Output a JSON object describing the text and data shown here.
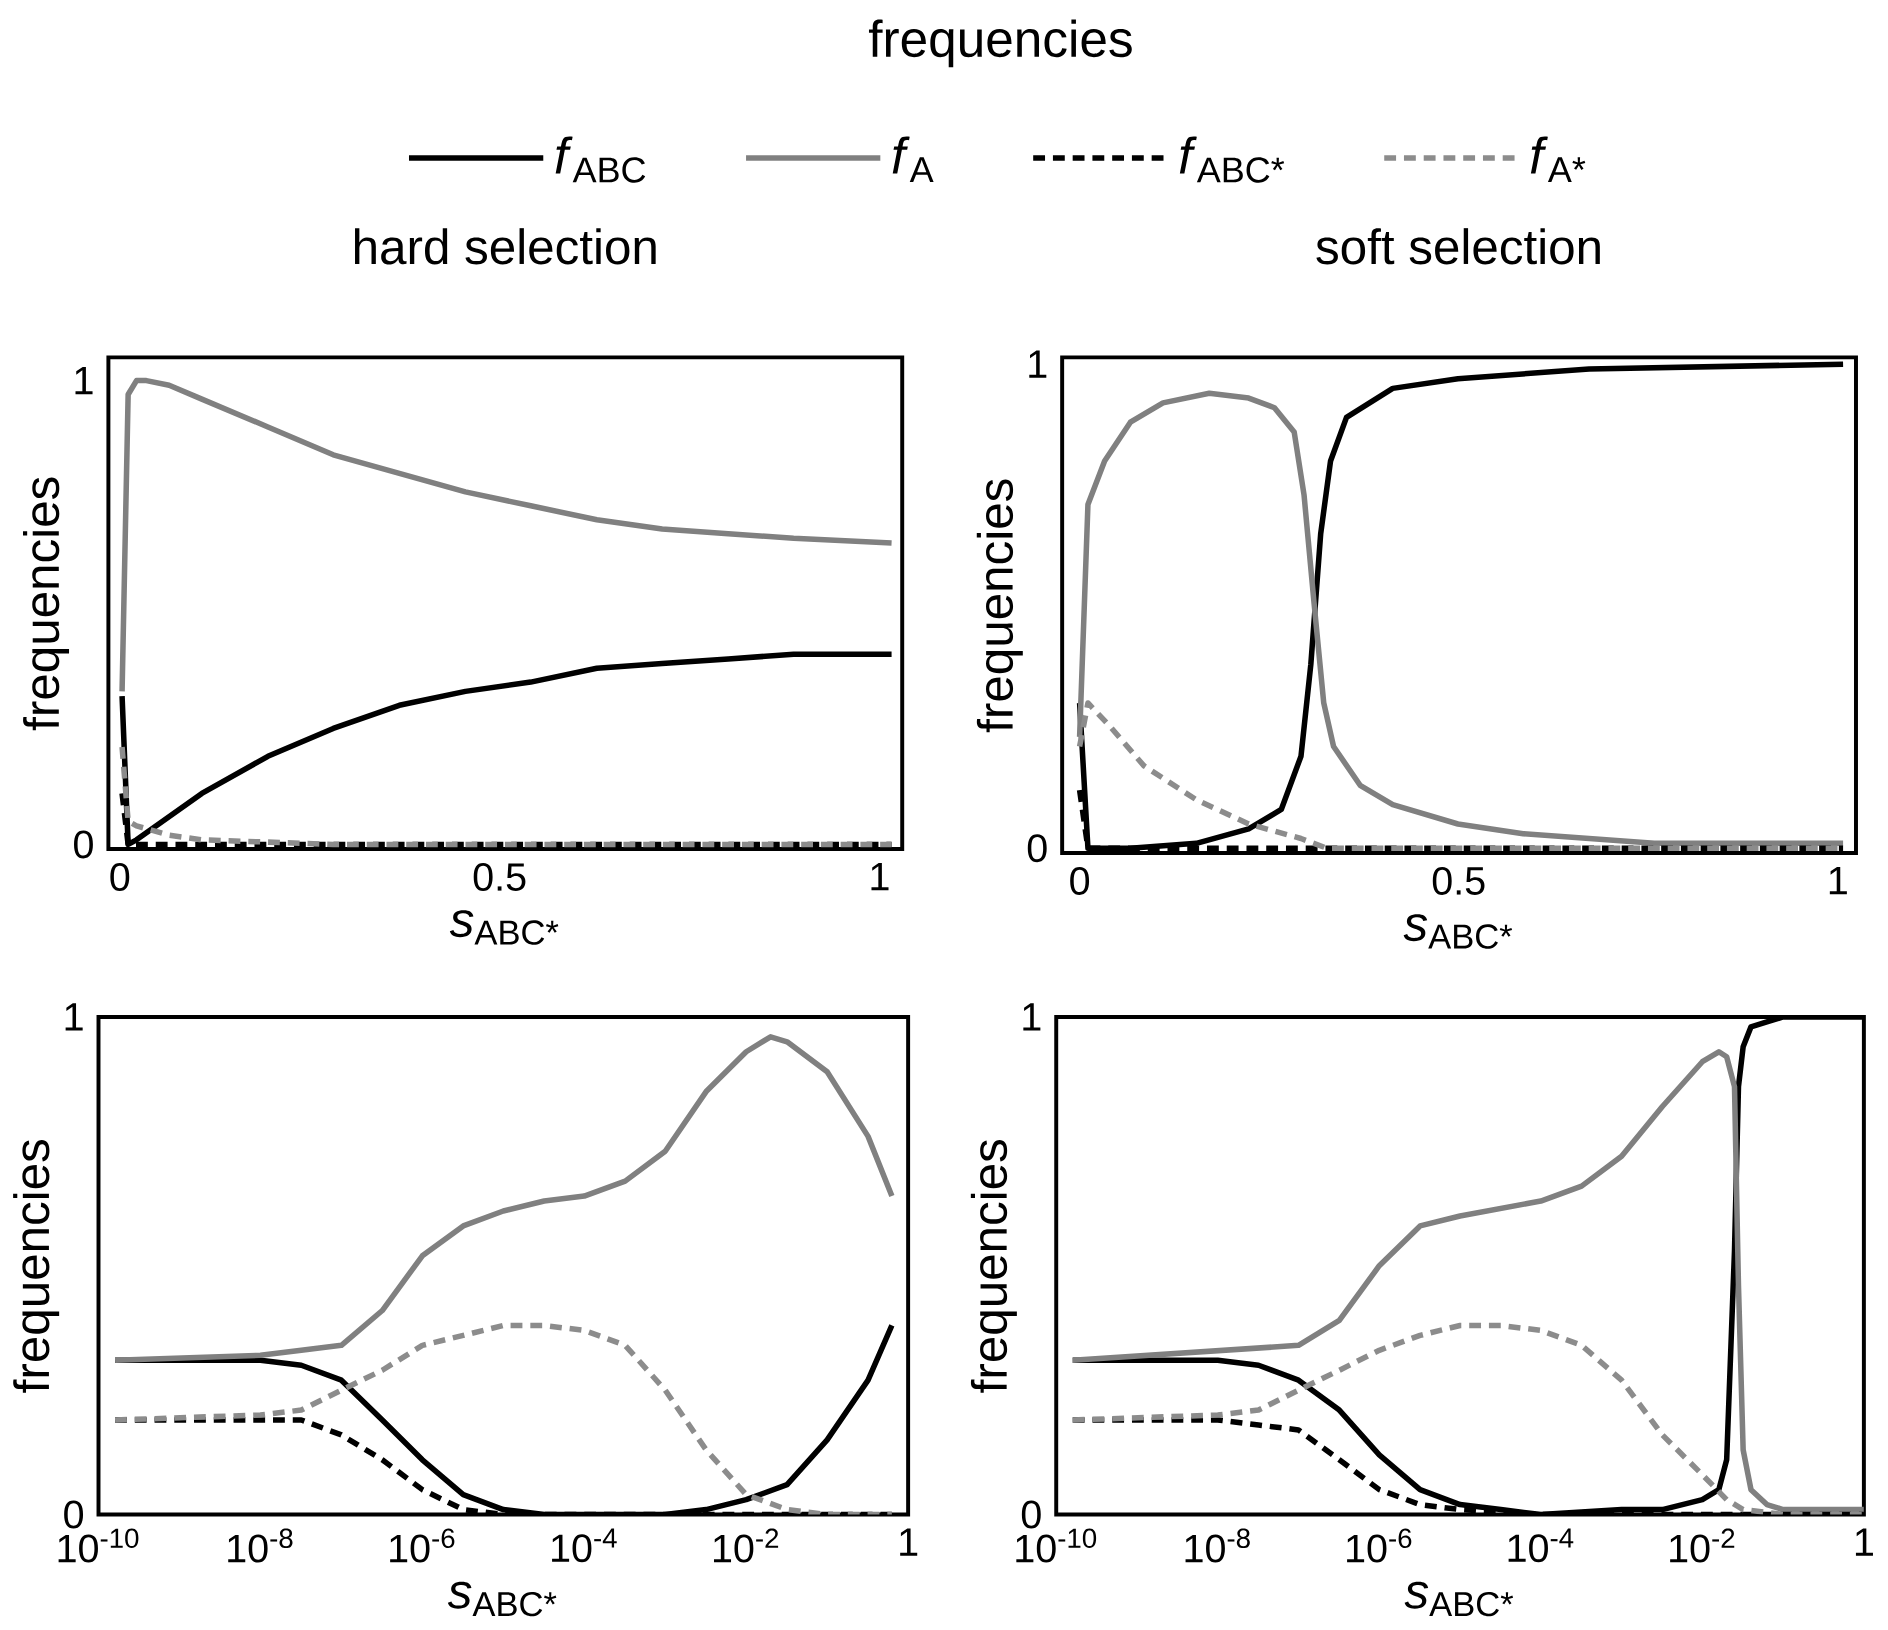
{
  "chart_data": [
    {
      "type": "line",
      "title": "hard selection",
      "xlabel": "*s*$_{ABC*}$",
      "ylabel": "frequencies",
      "legend": "top",
      "legend_title": "frequencies",
      "xlim": [
        -0.015,
        1.03
      ],
      "ylim": [
        -0.01,
        1.05
      ],
      "xticks": [
        0,
        0.5,
        1
      ],
      "yticks": [
        0,
        1
      ],
      "series": [
        {
          "name": "*f*$_{ABC}$",
          "color": "#000000",
          "line_style": "solid",
          "x": [
            0.003,
            0.011,
            0.022,
            0.108,
            0.195,
            0.281,
            0.368,
            0.455,
            0.541,
            0.628,
            0.714,
            0.801,
            0.887,
            1.016
          ],
          "values": [
            0.32,
            0.0,
            0.01,
            0.11,
            0.19,
            0.25,
            0.3,
            0.33,
            0.35,
            0.38,
            0.39,
            0.4,
            0.41,
            0.41
          ]
        },
        {
          "name": "*f*$_{A}$",
          "color": "#808080",
          "line_style": "solid",
          "x": [
            0.003,
            0.011,
            0.022,
            0.035,
            0.065,
            0.108,
            0.195,
            0.281,
            0.368,
            0.455,
            0.541,
            0.628,
            0.714,
            0.801,
            0.887,
            1.016
          ],
          "values": [
            0.33,
            0.97,
            1.0,
            1.0,
            0.99,
            0.96,
            0.9,
            0.84,
            0.8,
            0.76,
            0.73,
            0.7,
            0.68,
            0.67,
            0.66,
            0.65
          ]
        },
        {
          "name": "*f*$_{ABC*}$",
          "color": "#000000",
          "line_style": "dashed",
          "x": [
            0.003,
            0.011,
            1.016
          ],
          "values": [
            0.11,
            0.0,
            0.0
          ]
        },
        {
          "name": "*f*$_{A*}$",
          "color": "#8c8c8c",
          "line_style": "dashed",
          "x": [
            0.003,
            0.011,
            0.022,
            0.065,
            0.108,
            0.281,
            1.016
          ],
          "values": [
            0.21,
            0.05,
            0.04,
            0.02,
            0.01,
            0.0,
            0.0
          ]
        }
      ]
    },
    {
      "type": "line",
      "title": "soft selection",
      "xlabel": "*s*$_{ABC*}$",
      "ylabel": "frequencies",
      "xlim": [
        -0.023,
        1.024
      ],
      "ylim": [
        -0.01,
        1.014
      ],
      "xticks": [
        0,
        0.5,
        1
      ],
      "yticks": [
        0,
        1
      ],
      "series": [
        {
          "color": "#000000",
          "line_style": "solid",
          "x": [
            0.0,
            0.011,
            0.067,
            0.154,
            0.223,
            0.266,
            0.292,
            0.305,
            0.318,
            0.331,
            0.352,
            0.413,
            0.499,
            0.672,
            1.007
          ],
          "values": [
            0.3,
            0.0,
            0.0,
            0.01,
            0.04,
            0.08,
            0.19,
            0.38,
            0.65,
            0.8,
            0.89,
            0.95,
            0.97,
            0.99,
            1.0
          ]
        },
        {
          "color": "#808080",
          "line_style": "solid",
          "x": [
            0.0,
            0.011,
            0.033,
            0.067,
            0.11,
            0.171,
            0.223,
            0.257,
            0.283,
            0.296,
            0.309,
            0.322,
            0.335,
            0.37,
            0.413,
            0.499,
            0.585,
            0.758,
            1.007
          ],
          "values": [
            0.23,
            0.71,
            0.8,
            0.88,
            0.92,
            0.94,
            0.93,
            0.91,
            0.86,
            0.73,
            0.51,
            0.3,
            0.21,
            0.13,
            0.09,
            0.05,
            0.03,
            0.01,
            0.01
          ]
        },
        {
          "color": "#000000",
          "line_style": "dashed",
          "x": [
            0.0,
            0.011,
            1.007
          ],
          "values": [
            0.12,
            0.0,
            0.0
          ]
        },
        {
          "color": "#8c8c8c",
          "line_style": "dashed",
          "x": [
            0.0,
            0.011,
            0.041,
            0.085,
            0.154,
            0.223,
            0.292,
            0.326,
            1.007
          ],
          "values": [
            0.21,
            0.3,
            0.25,
            0.17,
            0.1,
            0.05,
            0.02,
            0.0,
            0.0
          ]
        }
      ]
    },
    {
      "type": "line",
      "xlabel": "*s*$_{ABC*}$",
      "ylabel": "frequencies",
      "log": "x",
      "xlim": [
        1e-10,
        1
      ],
      "ylim": [
        0,
        1
      ],
      "xticks": [
        {
          "value": 1e-10,
          "label": "10$^{-10}$"
        },
        {
          "value": 1e-08,
          "label": "10$^{-8}$"
        },
        {
          "value": 1e-06,
          "label": "10$^{-6}$"
        },
        {
          "value": 0.0001,
          "label": "10$^{-4}$"
        },
        {
          "value": 0.01,
          "label": "10$^{-2}$"
        },
        1
      ],
      "yticks": [
        0,
        1
      ],
      "series": [
        {
          "color": "#000000",
          "line_style": "solid",
          "x": [
            1.6e-10,
            1e-08,
            3.2e-08,
            1e-07,
            3.2e-07,
            1e-06,
            3.2e-06,
            1e-05,
            3.2e-05,
            0.0001,
            0.001,
            0.0032,
            0.01,
            0.032,
            0.1,
            0.32,
            0.63
          ],
          "values": [
            0.31,
            0.31,
            0.3,
            0.27,
            0.19,
            0.11,
            0.04,
            0.01,
            0.0,
            0.0,
            0.0,
            0.01,
            0.03,
            0.06,
            0.15,
            0.27,
            0.38
          ]
        },
        {
          "color": "#808080",
          "line_style": "solid",
          "x": [
            1.6e-10,
            1e-08,
            3.2e-08,
            1e-07,
            3.2e-07,
            1e-06,
            3.2e-06,
            1e-05,
            3.2e-05,
            0.0001,
            0.00032,
            0.001,
            0.0032,
            0.01,
            0.02,
            0.032,
            0.1,
            0.32,
            0.63
          ],
          "values": [
            0.31,
            0.32,
            0.33,
            0.34,
            0.41,
            0.52,
            0.58,
            0.61,
            0.63,
            0.64,
            0.67,
            0.73,
            0.85,
            0.93,
            0.96,
            0.95,
            0.89,
            0.76,
            0.64
          ]
        },
        {
          "color": "#000000",
          "line_style": "dashed",
          "x": [
            1.6e-10,
            1e-08,
            3.2e-08,
            1e-07,
            3.2e-07,
            1e-06,
            3.2e-06,
            1e-05,
            0.0001,
            0.63
          ],
          "values": [
            0.19,
            0.19,
            0.19,
            0.16,
            0.11,
            0.05,
            0.01,
            0.0,
            0.0,
            0.0
          ]
        },
        {
          "color": "#8c8c8c",
          "line_style": "dashed",
          "x": [
            1.6e-10,
            1e-08,
            3.2e-08,
            1e-07,
            3.2e-07,
            1e-06,
            3.2e-06,
            1e-05,
            3.2e-05,
            0.0001,
            0.00032,
            0.001,
            0.0032,
            0.01,
            0.032,
            0.1,
            0.63
          ],
          "values": [
            0.19,
            0.2,
            0.21,
            0.25,
            0.29,
            0.34,
            0.36,
            0.38,
            0.38,
            0.37,
            0.34,
            0.25,
            0.13,
            0.04,
            0.01,
            0.0,
            0.0
          ]
        }
      ]
    },
    {
      "type": "line",
      "xlabel": "*s*$_{ABC*}$",
      "ylabel": "frequencies",
      "log": "x",
      "xlim": [
        1e-10,
        1
      ],
      "ylim": [
        0,
        1
      ],
      "xticks": [
        {
          "value": 1e-10,
          "label": "10$^{-10}$"
        },
        {
          "value": 1e-08,
          "label": "10$^{-8}$"
        },
        {
          "value": 1e-06,
          "label": "10$^{-6}$"
        },
        {
          "value": 0.0001,
          "label": "10$^{-4}$"
        },
        {
          "value": 0.01,
          "label": "10$^{-2}$"
        },
        1
      ],
      "yticks": [
        0,
        1
      ],
      "series": [
        {
          "color": "#000000",
          "line_style": "solid",
          "x": [
            1.6e-10,
            1e-08,
            3.2e-08,
            1e-07,
            3.2e-07,
            1e-06,
            3.2e-06,
            1e-05,
            3.2e-05,
            0.0001,
            0.001,
            0.0032,
            0.01,
            0.016,
            0.02,
            0.025,
            0.028,
            0.032,
            0.04,
            0.063,
            0.1,
            1
          ],
          "values": [
            0.31,
            0.31,
            0.3,
            0.27,
            0.21,
            0.12,
            0.05,
            0.02,
            0.01,
            0.0,
            0.01,
            0.01,
            0.03,
            0.05,
            0.11,
            0.53,
            0.86,
            0.94,
            0.98,
            0.99,
            1.0,
            1.0
          ]
        },
        {
          "color": "#808080",
          "line_style": "solid",
          "x": [
            1.6e-10,
            1e-07,
            3.2e-07,
            1e-06,
            3.2e-06,
            1e-05,
            0.0001,
            0.00032,
            0.001,
            0.0032,
            0.01,
            0.016,
            0.02,
            0.025,
            0.028,
            0.032,
            0.04,
            0.063,
            0.1,
            0.32,
            1
          ],
          "values": [
            0.31,
            0.34,
            0.39,
            0.5,
            0.58,
            0.6,
            0.63,
            0.66,
            0.72,
            0.82,
            0.91,
            0.93,
            0.92,
            0.86,
            0.46,
            0.13,
            0.05,
            0.02,
            0.01,
            0.01,
            0.01
          ]
        },
        {
          "color": "#000000",
          "line_style": "dashed",
          "x": [
            1.6e-10,
            1e-08,
            3.2e-08,
            1e-07,
            3.2e-07,
            1e-06,
            3.2e-06,
            1e-05,
            0.0001,
            1
          ],
          "values": [
            0.19,
            0.19,
            0.18,
            0.17,
            0.11,
            0.05,
            0.02,
            0.01,
            0.0,
            0.0
          ]
        },
        {
          "color": "#8c8c8c",
          "line_style": "dashed",
          "x": [
            1.6e-10,
            1e-08,
            3.2e-08,
            1e-07,
            3.2e-07,
            1e-06,
            3.2e-06,
            1e-05,
            3.2e-05,
            0.0001,
            0.00032,
            0.001,
            0.0032,
            0.01,
            0.02,
            0.032,
            0.1,
            1
          ],
          "values": [
            0.19,
            0.2,
            0.21,
            0.25,
            0.29,
            0.33,
            0.36,
            0.38,
            0.38,
            0.37,
            0.34,
            0.27,
            0.16,
            0.08,
            0.03,
            0.01,
            0.0,
            0.0
          ]
        }
      ]
    }
  ]
}
